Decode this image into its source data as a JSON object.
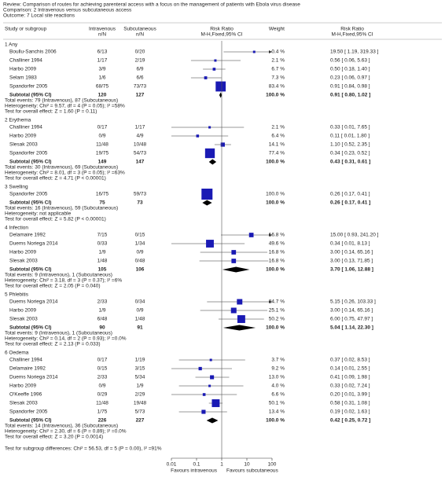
{
  "chart_data": {
    "type": "forest",
    "review": "Review:   Comparison of routes for achieving parenteral access with a focus on the management of patients with Ebola virus disease",
    "comparison": "Comparison:   2 Intravenous versus subcutaneous access",
    "outcome": "Outcome:   7 Local site reactions",
    "columns": {
      "study": "Study or subgroup",
      "iv": "Intravenous",
      "iv_unit": "n/N",
      "sc": "Subcutaneous",
      "sc_unit": "n/N",
      "plot": "Risk Ratio",
      "plot_method": "M-H,Fixed,95% CI",
      "weight": "Weight",
      "effect": "Risk Ratio",
      "effect_method": "M-H,Fixed,95% CI"
    },
    "xscale": "log",
    "xlim": [
      0.01,
      100
    ],
    "xticks": [
      0.01,
      0.1,
      1,
      10,
      100
    ],
    "favours_left": "Favours intravenous",
    "favours_right": "Favours subcutaneous",
    "square_color": "#1a1ab4",
    "diamond_color": "#000000",
    "groups": [
      {
        "title": "1 Any",
        "studies": [
          {
            "name": "Boullu-Sanchis 2006",
            "iv": "6/13",
            "sc": "0/20",
            "weight": {
              "value": 0.4,
              "label": "0.4 %"
            },
            "rr": 19.5,
            "lo": 1.19,
            "hi": 319.33,
            "effect": "19.50 [ 1.19, 319.33 ]"
          },
          {
            "name": "Challiner 1994",
            "iv": "1/17",
            "sc": "2/19",
            "weight": {
              "value": 2.1,
              "label": "2.1 %"
            },
            "rr": 0.56,
            "lo": 0.06,
            "hi": 5.63,
            "effect": "0.56 [ 0.06, 5.63 ]"
          },
          {
            "name": "Harbo 2009",
            "iv": "3/9",
            "sc": "6/9",
            "weight": {
              "value": 6.7,
              "label": "6.7 %"
            },
            "rr": 0.5,
            "lo": 0.18,
            "hi": 1.4,
            "effect": "0.50 [ 0.18, 1.40 ]"
          },
          {
            "name": "Selam 1983",
            "iv": "1/6",
            "sc": "6/6",
            "weight": {
              "value": 7.3,
              "label": "7.3 %"
            },
            "rr": 0.23,
            "lo": 0.06,
            "hi": 0.97,
            "effect": "0.23 [ 0.06, 0.97 ]"
          },
          {
            "name": "Spandorfer 2005",
            "iv": "68/75",
            "sc": "73/73",
            "weight": {
              "value": 83.4,
              "label": "83.4 %"
            },
            "rr": 0.91,
            "lo": 0.84,
            "hi": 0.98,
            "effect": "0.91 [ 0.84, 0.98 ]"
          }
        ],
        "subtotal": {
          "label": "Subtotal (95% CI)",
          "iv": 120,
          "sc": 127,
          "weight": {
            "value": 100,
            "label": "100.0 %"
          },
          "rr": 0.91,
          "lo": 0.8,
          "hi": 1.02,
          "effect": "0.91 [ 0.80, 1.02 ]"
        },
        "notes": [
          "Total events: 79 (Intravenous), 87 (Subcutaneous)",
          "Heterogeneity: Chi² = 9.57, df = 4 (P = 0.05); I² =58%",
          "Test for overall effect: Z = 1.60 (P = 0.11)"
        ]
      },
      {
        "title": "2 Erythema",
        "studies": [
          {
            "name": "Challiner 1994",
            "iv": "0/17",
            "sc": "1/17",
            "weight": {
              "value": 2.1,
              "label": "2.1 %"
            },
            "rr": 0.33,
            "lo": 0.01,
            "hi": 7.65,
            "effect": "0.33 [ 0.01, 7.65 ]"
          },
          {
            "name": "Harbo 2009",
            "iv": "0/9",
            "sc": "4/9",
            "weight": {
              "value": 6.4,
              "label": "6.4 %"
            },
            "rr": 0.11,
            "lo": 0.01,
            "hi": 1.8,
            "effect": "0.11 [ 0.01, 1.80 ]"
          },
          {
            "name": "Slesak 2003",
            "iv": "11/48",
            "sc": "10/48",
            "weight": {
              "value": 14.1,
              "label": "14.1 %"
            },
            "rr": 1.1,
            "lo": 0.52,
            "hi": 2.35,
            "effect": "1.10 [ 0.52, 2.35 ]"
          },
          {
            "name": "Spandorfer 2005",
            "iv": "19/75",
            "sc": "54/73",
            "weight": {
              "value": 77.4,
              "label": "77.4 %"
            },
            "rr": 0.34,
            "lo": 0.23,
            "hi": 0.52,
            "effect": "0.34 [ 0.23, 0.52 ]"
          }
        ],
        "subtotal": {
          "label": "Subtotal (95% CI)",
          "iv": 149,
          "sc": 147,
          "weight": {
            "value": 100,
            "label": "100.0 %"
          },
          "rr": 0.43,
          "lo": 0.31,
          "hi": 0.61,
          "effect": "0.43 [ 0.31, 0.61 ]"
        },
        "notes": [
          "Total events: 30 (Intravenous), 69 (Subcutaneous)",
          "Heterogeneity: Chi² = 8.01, df = 3 (P = 0.05); I² =63%",
          "Test for overall effect: Z = 4.71 (P < 0.00001)"
        ]
      },
      {
        "title": "3 Swelling",
        "studies": [
          {
            "name": "Spandorfer 2005",
            "iv": "16/75",
            "sc": "59/73",
            "weight": {
              "value": 100,
              "label": "100.0 %"
            },
            "rr": 0.26,
            "lo": 0.17,
            "hi": 0.41,
            "effect": "0.26 [ 0.17, 0.41 ]"
          }
        ],
        "subtotal": {
          "label": "Subtotal (95% CI)",
          "iv": 75,
          "sc": 73,
          "weight": {
            "value": 100,
            "label": "100.0 %"
          },
          "rr": 0.26,
          "lo": 0.17,
          "hi": 0.41,
          "effect": "0.26 [ 0.17, 0.41 ]"
        },
        "notes": [
          "Total events: 16 (Intravenous), 59 (Subcutaneous)",
          "Heterogeneity: not applicable",
          "Test for overall effect: Z = 5.82 (P < 0.00001)"
        ]
      },
      {
        "title": "4 Infection",
        "studies": [
          {
            "name": "Delamaire 1992",
            "iv": "7/15",
            "sc": "0/15",
            "weight": {
              "value": 16.8,
              "label": "16.8 %"
            },
            "rr": 15,
            "lo": 0.93,
            "hi": 241.2,
            "effect": "15.00 [ 0.93, 241.20 ]"
          },
          {
            "name": "Duems Noriega 2014",
            "iv": "0/33",
            "sc": "1/34",
            "weight": {
              "value": 49.6,
              "label": "49.6 %"
            },
            "rr": 0.34,
            "lo": 0.01,
            "hi": 8.13,
            "effect": "0.34 [ 0.01, 8.13 ]"
          },
          {
            "name": "Harbo 2009",
            "iv": "1/9",
            "sc": "0/9",
            "weight": {
              "value": 16.8,
              "label": "16.8 %"
            },
            "rr": 3,
            "lo": 0.14,
            "hi": 65.16,
            "effect": "3.00 [ 0.14, 65.16 ]"
          },
          {
            "name": "Slesak 2003",
            "iv": "1/48",
            "sc": "0/48",
            "weight": {
              "value": 16.8,
              "label": "16.8 %"
            },
            "rr": 3,
            "lo": 0.13,
            "hi": 71.85,
            "effect": "3.00 [ 0.13, 71.85 ]"
          }
        ],
        "subtotal": {
          "label": "Subtotal (95% CI)",
          "iv": 105,
          "sc": 106,
          "weight": {
            "value": 100,
            "label": "100.0 %"
          },
          "rr": 3.7,
          "lo": 1.06,
          "hi": 12.88,
          "effect": "3.70 [ 1.06, 12.88 ]"
        },
        "notes": [
          "Total events: 9 (Intravenous), 1 (Subcutaneous)",
          "Heterogeneity: Chi² = 3.18, df = 3 (P = 0.37); I² =6%",
          "Test for overall effect: Z = 2.05 (P = 0.040)"
        ]
      },
      {
        "title": "5 Phlebitis",
        "studies": [
          {
            "name": "Duems Noriega 2014",
            "iv": "2/33",
            "sc": "0/34",
            "weight": {
              "value": 24.7,
              "label": "24.7 %"
            },
            "rr": 5.15,
            "lo": 0.26,
            "hi": 103.33,
            "effect": "5.15 [ 0.26, 103.33 ]"
          },
          {
            "name": "Harbo 2009",
            "iv": "1/9",
            "sc": "0/9",
            "weight": {
              "value": 25.1,
              "label": "25.1 %"
            },
            "rr": 3,
            "lo": 0.14,
            "hi": 65.16,
            "effect": "3.00 [ 0.14, 65.16 ]"
          },
          {
            "name": "Slesak 2003",
            "iv": "6/48",
            "sc": "1/48",
            "weight": {
              "value": 50.2,
              "label": "50.2 %"
            },
            "rr": 6,
            "lo": 0.75,
            "hi": 47.97,
            "effect": "6.00 [ 0.75, 47.97 ]"
          }
        ],
        "subtotal": {
          "label": "Subtotal (95% CI)",
          "iv": 90,
          "sc": 91,
          "weight": {
            "value": 100,
            "label": "100.0 %"
          },
          "rr": 5.04,
          "lo": 1.14,
          "hi": 22.3,
          "effect": "5.04 [ 1.14, 22.30 ]"
        },
        "notes": [
          "Total events: 9 (Intravenous), 1 (Subcutaneous)",
          "Heterogeneity: Chi² = 0.14, df = 2 (P = 0.93); I² =0.0%",
          "Test for overall effect: Z = 2.13 (P = 0.033)"
        ]
      },
      {
        "title": "6 Oedema",
        "studies": [
          {
            "name": "Challiner 1994",
            "iv": "0/17",
            "sc": "1/19",
            "weight": {
              "value": 3.7,
              "label": "3.7 %"
            },
            "rr": 0.37,
            "lo": 0.02,
            "hi": 8.53,
            "effect": "0.37 [ 0.02, 8.53 ]"
          },
          {
            "name": "Delamaire 1992",
            "iv": "0/15",
            "sc": "3/15",
            "weight": {
              "value": 9.2,
              "label": "9.2 %"
            },
            "rr": 0.14,
            "lo": 0.01,
            "hi": 2.55,
            "effect": "0.14 [ 0.01, 2.55 ]"
          },
          {
            "name": "Duems Noriega 2014",
            "iv": "2/33",
            "sc": "5/34",
            "weight": {
              "value": 13,
              "label": "13.0 %"
            },
            "rr": 0.41,
            "lo": 0.09,
            "hi": 1.98,
            "effect": "0.41 [ 0.09, 1.98 ]"
          },
          {
            "name": "Harbo 2009",
            "iv": "0/9",
            "sc": "1/9",
            "weight": {
              "value": 4,
              "label": "4.0 %"
            },
            "rr": 0.33,
            "lo": 0.02,
            "hi": 7.24,
            "effect": "0.33 [ 0.02, 7.24 ]"
          },
          {
            "name": "O'Keeffe 1996",
            "iv": "0/29",
            "sc": "2/29",
            "weight": {
              "value": 6.6,
              "label": "6.6 %"
            },
            "rr": 0.2,
            "lo": 0.01,
            "hi": 3.99,
            "effect": "0.20 [ 0.01, 3.99 ]"
          },
          {
            "name": "Slesak 2003",
            "iv": "11/48",
            "sc": "19/48",
            "weight": {
              "value": 50.1,
              "label": "50.1 %"
            },
            "rr": 0.58,
            "lo": 0.31,
            "hi": 1.08,
            "effect": "0.58 [ 0.31, 1.08 ]"
          },
          {
            "name": "Spandorfer 2005",
            "iv": "1/75",
            "sc": "5/73",
            "weight": {
              "value": 13.4,
              "label": "13.4 %"
            },
            "rr": 0.19,
            "lo": 0.02,
            "hi": 1.63,
            "effect": "0.19 [ 0.02, 1.63 ]"
          }
        ],
        "subtotal": {
          "label": "Subtotal (95% CI)",
          "iv": 226,
          "sc": 227,
          "weight": {
            "value": 100,
            "label": "100.0 %"
          },
          "rr": 0.42,
          "lo": 0.25,
          "hi": 0.72,
          "effect": "0.42 [ 0.25, 0.72 ]"
        },
        "notes": [
          "Total events: 14 (Intravenous), 36 (Subcutaneous)",
          "Heterogeneity: Chi² = 2.30, df = 6 (P = 0.89); I² =0.0%",
          "Test for overall effect: Z = 3.20 (P = 0.0014)"
        ]
      }
    ],
    "subgroup_test": "Test for subgroup differences: Chi² = 56.53, df = 5 (P = 0.00), I² =91%"
  }
}
